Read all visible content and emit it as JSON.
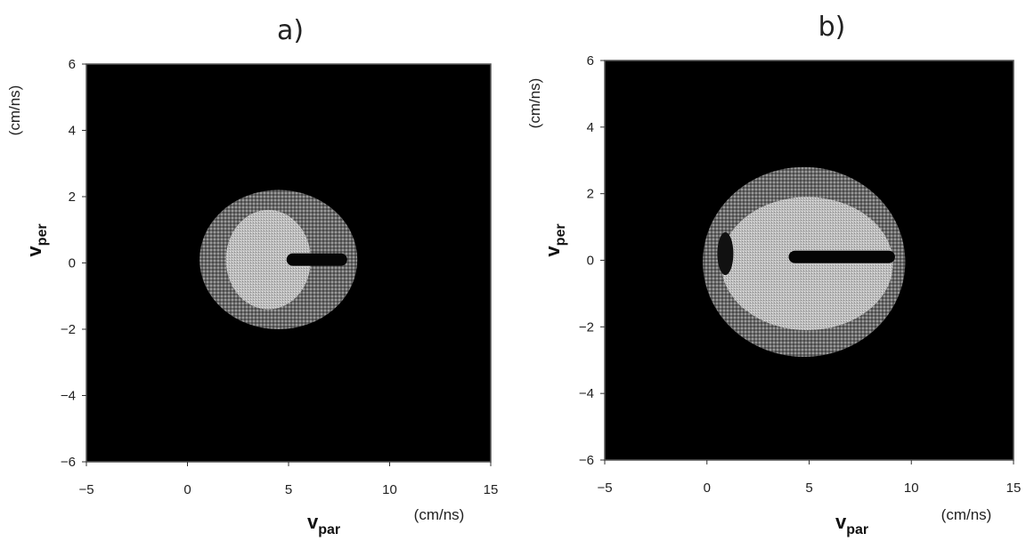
{
  "chart_data": [
    {
      "type": "heatmap",
      "panel_label": "a)",
      "xlabel": "v",
      "xlabel_sub": "par",
      "xunit": "(cm/ns)",
      "ylabel": "v",
      "ylabel_sub": "per",
      "yunit": "(cm/ns)",
      "xlim": [
        -5,
        15
      ],
      "ylim": [
        -6,
        6
      ],
      "x_ticks": [
        -5,
        0,
        5,
        10,
        15
      ],
      "y_ticks": [
        6,
        4,
        2,
        0,
        -2,
        -4,
        -6
      ],
      "background_color": "#000000",
      "features": {
        "halo": {
          "x_range": [
            0.6,
            8.4
          ],
          "y_range": [
            -2.0,
            2.2
          ]
        },
        "core": {
          "x_range": [
            1.9,
            6.1
          ],
          "y_range": [
            -1.4,
            1.6
          ]
        },
        "dark_channel": {
          "x_range": [
            4.9,
            7.9
          ],
          "y": 0.1
        }
      }
    },
    {
      "type": "heatmap",
      "panel_label": "b)",
      "xlabel": "v",
      "xlabel_sub": "par",
      "xunit": "(cm/ns)",
      "ylabel": "v",
      "ylabel_sub": "per",
      "yunit": "(cm/ns)",
      "xlim": [
        -5,
        15
      ],
      "ylim": [
        -6,
        6
      ],
      "x_ticks": [
        -5,
        0,
        5,
        10,
        15
      ],
      "y_ticks": [
        6,
        4,
        2,
        0,
        -2,
        -4,
        -6
      ],
      "background_color": "#000000",
      "features": {
        "halo": {
          "x_range": [
            -0.2,
            9.7
          ],
          "y_range": [
            -2.9,
            2.8
          ]
        },
        "core": {
          "x_range": [
            0.7,
            9.1
          ],
          "y_range": [
            -2.1,
            1.9
          ]
        },
        "dark_channel": {
          "x_range": [
            4.0,
            9.2
          ],
          "y": 0.1
        },
        "left_dark_spot": {
          "x": 0.9,
          "y": 0.2
        }
      }
    }
  ]
}
